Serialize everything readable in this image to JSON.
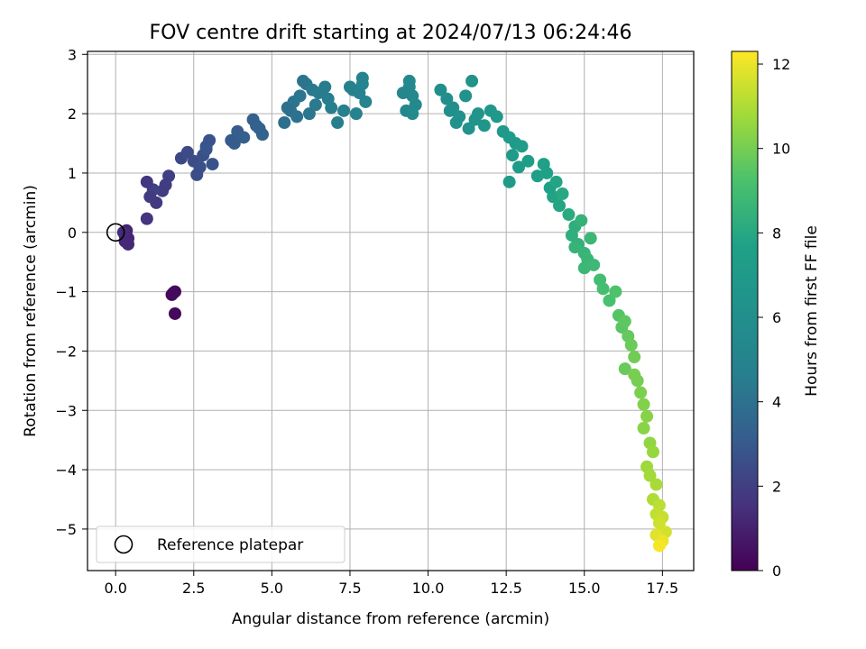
{
  "chart_data": {
    "type": "scatter",
    "title": "FOV centre drift starting at 2024/07/13 06:24:46",
    "xlabel": "Angular distance from reference (arcmin)",
    "ylabel": "Rotation from reference (arcmin)",
    "xlim": [
      -0.9,
      18.5
    ],
    "ylim": [
      -5.7,
      3.05
    ],
    "xticks": [
      0.0,
      2.5,
      5.0,
      7.5,
      10.0,
      12.5,
      15.0,
      17.5
    ],
    "xtick_labels": [
      "0.0",
      "2.5",
      "5.0",
      "7.5",
      "10.0",
      "12.5",
      "15.0",
      "17.5"
    ],
    "yticks": [
      -5,
      -4,
      -3,
      -2,
      -1,
      0,
      1,
      2,
      3
    ],
    "ytick_labels": [
      "−5",
      "−4",
      "−3",
      "−2",
      "−1",
      "0",
      "1",
      "2",
      "3"
    ],
    "grid": true,
    "legend": {
      "placement": "lower-left",
      "entries": [
        "Reference platepar"
      ]
    },
    "colormap": "viridis",
    "colorbar": {
      "label": "Hours from first FF file",
      "range": [
        0,
        12.3
      ],
      "ticks": [
        0,
        2,
        4,
        6,
        8,
        10,
        12
      ],
      "tick_labels": [
        "0",
        "2",
        "4",
        "6",
        "8",
        "10",
        "12"
      ]
    },
    "reference_point": {
      "x": 0.0,
      "y": 0.0
    },
    "series": [
      {
        "x": [
          1.9,
          1.8,
          1.85,
          1.9,
          0.3,
          0.35,
          0.4,
          0.3,
          0.25,
          0.4,
          1.0,
          1.3,
          1.5,
          1.7,
          1.6,
          1.2,
          1.1,
          1.0,
          2.1,
          2.3,
          2.5,
          2.7,
          2.9,
          3.0,
          2.6,
          2.8,
          3.1,
          2.9,
          3.7,
          3.9,
          4.1,
          3.8,
          4.5,
          4.7,
          4.6,
          4.4,
          5.4,
          5.5,
          5.7,
          5.9,
          6.1,
          6.3,
          6.5,
          6.0,
          6.2,
          6.4,
          6.7,
          6.8,
          5.6,
          5.8,
          6.9,
          7.1,
          7.3,
          7.6,
          7.8,
          7.9,
          8.0,
          7.7,
          7.5,
          7.9,
          9.3,
          9.4,
          9.5,
          9.6,
          9.2,
          9.4,
          9.5,
          10.4,
          10.6,
          10.8,
          11.0,
          11.2,
          11.4,
          11.6,
          10.7,
          10.9,
          11.3,
          11.5,
          11.8,
          12.0,
          12.2,
          12.4,
          12.6,
          12.8,
          12.7,
          13.0,
          12.9,
          12.6,
          13.2,
          13.5,
          13.7,
          13.9,
          14.0,
          14.2,
          14.3,
          14.1,
          13.8,
          14.5,
          14.7,
          14.6,
          14.8,
          14.9,
          15.0,
          15.1,
          15.2,
          14.7,
          15.0,
          15.3,
          15.5,
          15.6,
          15.8,
          16.0,
          16.1,
          16.2,
          16.3,
          16.4,
          16.5,
          16.6,
          16.3,
          16.7,
          16.8,
          16.6,
          16.9,
          17.0,
          16.9,
          17.1,
          17.2,
          17.0,
          17.1,
          17.3,
          17.2,
          17.4,
          17.3,
          17.5,
          17.4,
          17.6,
          17.3,
          17.5,
          17.4
        ],
        "y": [
          -1.0,
          -1.05,
          -1.02,
          -1.37,
          -0.05,
          0.03,
          -0.1,
          -0.15,
          0.0,
          -0.2,
          0.23,
          0.5,
          0.7,
          0.95,
          0.8,
          0.72,
          0.6,
          0.85,
          1.25,
          1.35,
          1.2,
          1.1,
          1.45,
          1.55,
          0.97,
          1.3,
          1.15,
          1.4,
          1.55,
          1.7,
          1.6,
          1.5,
          1.8,
          1.65,
          1.75,
          1.9,
          1.85,
          2.1,
          2.2,
          2.3,
          2.5,
          2.4,
          2.35,
          2.55,
          2.0,
          2.15,
          2.45,
          2.25,
          2.05,
          1.95,
          2.1,
          1.85,
          2.05,
          2.4,
          2.35,
          2.6,
          2.2,
          2.0,
          2.45,
          2.5,
          2.05,
          2.45,
          2.3,
          2.15,
          2.35,
          2.55,
          2.0,
          2.4,
          2.25,
          2.1,
          1.95,
          2.3,
          2.55,
          2.0,
          2.05,
          1.85,
          1.75,
          1.9,
          1.8,
          2.05,
          1.95,
          1.7,
          1.6,
          1.5,
          1.3,
          1.45,
          1.1,
          0.85,
          1.2,
          0.95,
          1.15,
          0.75,
          0.6,
          0.45,
          0.65,
          0.85,
          1.0,
          0.3,
          0.1,
          -0.05,
          -0.2,
          0.2,
          -0.35,
          -0.45,
          -0.1,
          -0.25,
          -0.6,
          -0.55,
          -0.8,
          -0.95,
          -1.15,
          -1.0,
          -1.4,
          -1.6,
          -1.5,
          -1.75,
          -1.9,
          -2.1,
          -2.3,
          -2.5,
          -2.7,
          -2.4,
          -2.9,
          -3.1,
          -3.3,
          -3.55,
          -3.7,
          -3.95,
          -4.1,
          -4.25,
          -4.5,
          -4.6,
          -4.75,
          -4.8,
          -4.9,
          -5.05,
          -5.1,
          -5.2,
          -5.28
        ],
        "color_values": [
          0.1,
          0.2,
          0.3,
          0.25,
          1.0,
          1.1,
          1.15,
          1.2,
          1.3,
          1.25,
          1.6,
          1.8,
          1.9,
          2.0,
          1.95,
          2.1,
          1.85,
          1.7,
          2.3,
          2.4,
          2.5,
          2.6,
          2.7,
          2.8,
          2.55,
          2.65,
          2.75,
          2.85,
          3.0,
          3.1,
          3.2,
          3.05,
          3.3,
          3.4,
          3.35,
          3.25,
          3.9,
          4.0,
          4.1,
          4.2,
          4.3,
          4.4,
          4.5,
          4.15,
          4.25,
          4.35,
          4.45,
          4.55,
          3.95,
          4.05,
          4.6,
          4.65,
          4.7,
          4.8,
          4.9,
          4.95,
          5.0,
          4.85,
          4.75,
          5.05,
          5.3,
          5.35,
          5.4,
          5.45,
          5.25,
          5.5,
          5.55,
          5.9,
          6.0,
          6.1,
          6.2,
          6.25,
          6.35,
          6.45,
          6.05,
          6.15,
          6.3,
          6.4,
          6.6,
          6.7,
          6.8,
          6.9,
          7.0,
          7.1,
          7.05,
          7.2,
          7.15,
          7.0,
          7.3,
          7.5,
          7.6,
          7.7,
          7.8,
          7.9,
          8.0,
          7.85,
          7.65,
          8.1,
          8.25,
          8.3,
          8.4,
          8.5,
          8.6,
          8.65,
          8.7,
          8.55,
          8.75,
          8.8,
          9.0,
          9.1,
          9.2,
          9.3,
          9.4,
          9.5,
          9.6,
          9.7,
          9.8,
          9.9,
          9.75,
          10.0,
          10.1,
          10.05,
          10.2,
          10.3,
          10.35,
          10.5,
          10.6,
          10.7,
          10.8,
          10.9,
          11.0,
          11.2,
          11.3,
          11.4,
          11.5,
          11.6,
          11.8,
          12.0,
          12.2
        ]
      }
    ]
  }
}
